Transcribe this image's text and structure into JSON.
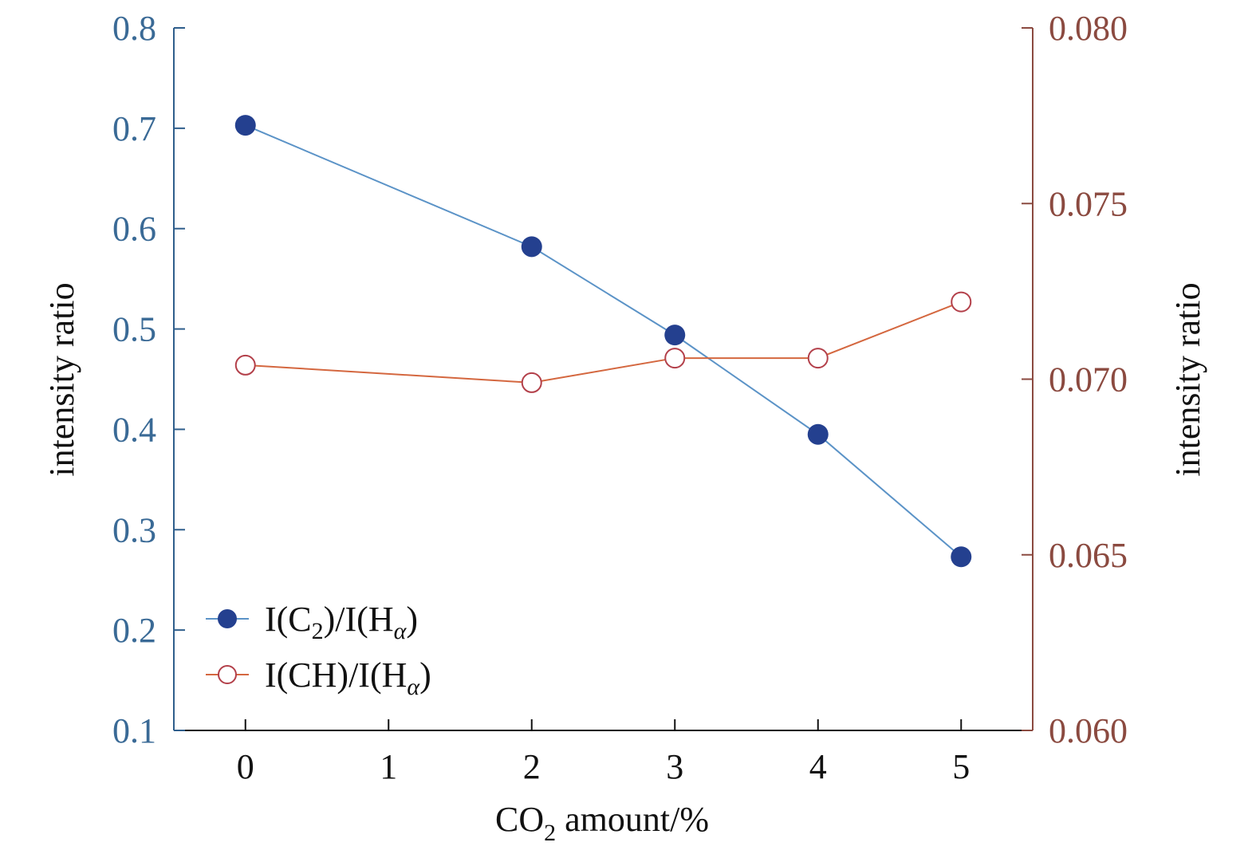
{
  "chart_data": {
    "type": "line",
    "x": [
      0,
      2,
      3,
      4,
      5
    ],
    "xlabel": {
      "main": "CO",
      "sub": "2",
      "rest": " amount/%"
    },
    "xticks": [
      "0",
      "1",
      "2",
      "3",
      "4",
      "5"
    ],
    "xlim": [
      -0.5,
      5.5
    ],
    "y_left": {
      "label": "intensity ratio",
      "lim": [
        0.1,
        0.8
      ],
      "ticks": [
        "0.1",
        "0.2",
        "0.3",
        "0.4",
        "0.5",
        "0.6",
        "0.7",
        "0.8"
      ],
      "color": "#3a6a96"
    },
    "y_right": {
      "label": "intensity ratio",
      "lim": [
        0.06,
        0.08
      ],
      "ticks": [
        "0.060",
        "0.065",
        "0.070",
        "0.075",
        "0.080"
      ],
      "color": "#8b4a40"
    },
    "series": [
      {
        "legend": {
          "prefix": "I(C",
          "sub1": "2",
          "mid": ")/I(H",
          "sub2": "α",
          "suffix": ")"
        },
        "axis": "left",
        "marker": "filled-circle",
        "line_color": "#5b93c7",
        "marker_color": "#24408f",
        "values": [
          0.703,
          0.582,
          0.494,
          0.395,
          0.273
        ]
      },
      {
        "legend": {
          "prefix": "I(CH)/I(H",
          "sub1": "",
          "mid": "",
          "sub2": "α",
          "suffix": ")"
        },
        "axis": "right",
        "marker": "open-circle",
        "line_color": "#d4673f",
        "marker_color": "#b3404a",
        "values": [
          0.0704,
          0.0699,
          0.0706,
          0.0706,
          0.0722
        ]
      }
    ],
    "legend_position": "bottom-left",
    "grid": false
  }
}
